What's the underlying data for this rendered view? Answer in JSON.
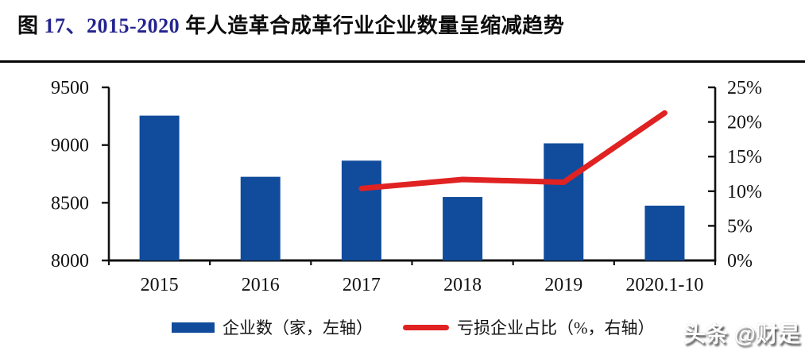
{
  "figure": {
    "title_parts": [
      {
        "text": "图 ",
        "color": "#0d0d0d"
      },
      {
        "text": "17、2015-2020 ",
        "color": "#24248f"
      },
      {
        "text": "年人造革合成革行业企业数量呈缩减趋势",
        "color": "#0d0d0d"
      }
    ]
  },
  "watermark": {
    "text": "头条 @财是"
  },
  "legend": {
    "items": [
      {
        "label": "企业数（家，左轴）",
        "marker": "bar",
        "color": "#114c9c"
      },
      {
        "label": "亏损企业占比（%，右轴）",
        "marker": "line",
        "color": "#e02222"
      }
    ]
  },
  "chart_data": {
    "type": "combo",
    "title": "图 17、2015-2020 年人造革合成革行业企业数量呈缩减趋势",
    "categories": [
      "2015",
      "2016",
      "2017",
      "2018",
      "2019",
      "2020.1-10"
    ],
    "series": [
      {
        "name": "企业数（家，左轴）",
        "type": "bar",
        "axis": "left",
        "color": "#114c9c",
        "values": [
          9255,
          8725,
          8865,
          8550,
          9015,
          8475
        ]
      },
      {
        "name": "亏损企业占比（%，右轴）",
        "type": "line",
        "axis": "right",
        "color": "#e02222",
        "values": [
          null,
          null,
          10.4,
          11.7,
          11.3,
          21.3
        ]
      }
    ],
    "left_axis": {
      "min": 8000,
      "max": 9500,
      "ticks": [
        9500,
        9000,
        8500,
        8000
      ],
      "tick_labels": [
        "9500",
        "9000",
        "8500",
        "8000"
      ]
    },
    "right_axis": {
      "min": 0,
      "max": 25,
      "ticks": [
        25,
        20,
        15,
        10,
        5,
        0
      ],
      "tick_labels": [
        "25%",
        "20%",
        "15%",
        "10%",
        "5%",
        "0%"
      ]
    },
    "grid": false,
    "legend_position": "bottom",
    "axis_color": "#111111"
  }
}
